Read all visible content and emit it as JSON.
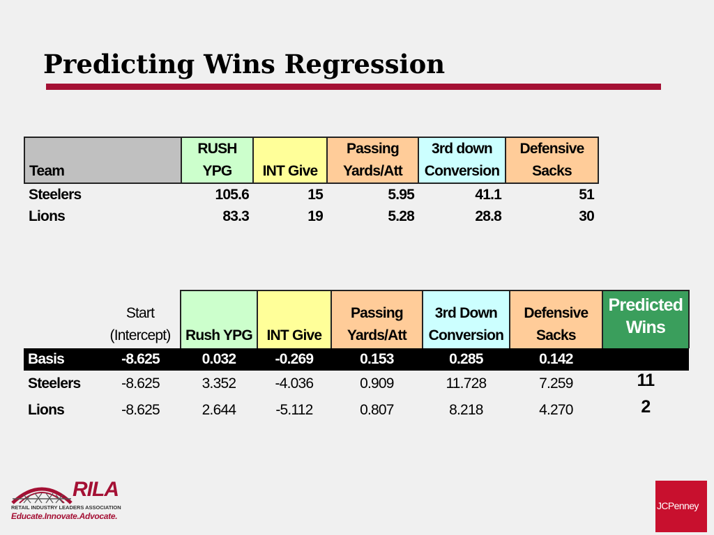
{
  "slide": {
    "title": "Predicting Wins Regression"
  },
  "table1": {
    "headers": {
      "team": "Team",
      "rush_l1": "RUSH",
      "rush_l2": "YPG",
      "int": "INT Give",
      "pass_l1": "Passing",
      "pass_l2": "Yards/Att",
      "third_l1": "3rd down",
      "third_l2": "Conversion",
      "def_l1": "Defensive",
      "def_l2": "Sacks"
    },
    "rows": [
      {
        "team": "Steelers",
        "rush": "105.6",
        "int": "15",
        "pass": "5.95",
        "third": "41.1",
        "sacks": "51"
      },
      {
        "team": "Lions",
        "rush": "83.3",
        "int": "19",
        "pass": "5.28",
        "third": "28.8",
        "sacks": "30"
      }
    ]
  },
  "table2": {
    "headers": {
      "start_l1": "Start",
      "start_l2": "(Intercept)",
      "rush": "Rush YPG",
      "int": "INT Give",
      "pass_l1": "Passing",
      "pass_l2": "Yards/Att",
      "third_l1": "3rd Down",
      "third_l2": "Conversion",
      "def_l1": "Defensive",
      "def_l2": "Sacks",
      "pred_l1": "Predicted",
      "pred_l2": "Wins"
    },
    "basis": {
      "label": "Basis",
      "start": "-8.625",
      "rush": "0.032",
      "int": "-0.269",
      "pass": "0.153",
      "third": "0.285",
      "sacks": "0.142"
    },
    "rows": [
      {
        "team": "Steelers",
        "start": "-8.625",
        "rush": "3.352",
        "int": "-4.036",
        "pass": "0.909",
        "third": "11.728",
        "sacks": "7.259",
        "predicted": "11"
      },
      {
        "team": "Lions",
        "start": "-8.625",
        "rush": "2.644",
        "int": "-5.112",
        "pass": "0.807",
        "third": "8.218",
        "sacks": "4.270",
        "predicted": "2"
      }
    ]
  },
  "logos": {
    "rila_word": "RILA",
    "rila_tagline": "RETAIL INDUSTRY LEADERS ASSOCIATION",
    "rila_motto": "Educate.Innovate.Advocate.",
    "jcp": "JCPenney"
  },
  "colors": {
    "title_rule": "#a41034",
    "rush_header": "#ccffcc",
    "int_header": "#ffff99",
    "passing_header": "#ffcc99",
    "third_down_header": "#ccffff",
    "defensive_header": "#ffcc99",
    "predicted_header": "#3a9e5c",
    "team_header": "#c0c0c0"
  }
}
